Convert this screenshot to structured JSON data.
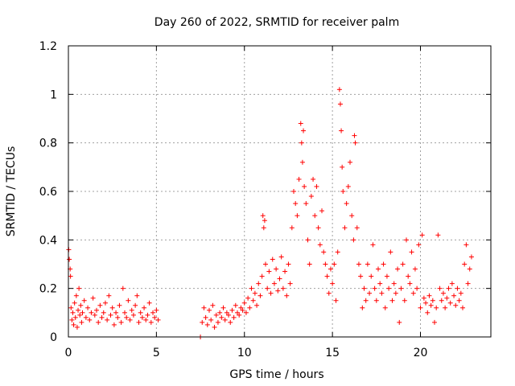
{
  "chart_data": {
    "type": "scatter",
    "title": "Day 260 of 2022, SRMTID for receiver palm",
    "xlabel": "GPS time / hours",
    "ylabel": "SRMTID / TECUs",
    "xlim": [
      0,
      24
    ],
    "ylim": [
      0,
      1.2
    ],
    "xticks": [
      0,
      5,
      10,
      15,
      20
    ],
    "xtick_labels": [
      "0",
      "5",
      "10",
      "15",
      "20"
    ],
    "yticks": [
      0,
      0.2,
      0.4,
      0.6,
      0.8,
      1,
      1.2
    ],
    "ytick_labels": [
      "0",
      "0.2",
      "0.4",
      "0.6",
      "0.8",
      "1",
      "1.2"
    ],
    "grid": true,
    "marker": "+",
    "color": "#ff0000",
    "series": [
      {
        "name": "SRMTID",
        "points": [
          [
            0.02,
            0.36
          ],
          [
            0.05,
            0.32
          ],
          [
            0.1,
            0.28
          ],
          [
            0.12,
            0.25
          ],
          [
            0.15,
            0.12
          ],
          [
            0.2,
            0.07
          ],
          [
            0.25,
            0.1
          ],
          [
            0.3,
            0.05
          ],
          [
            0.35,
            0.14
          ],
          [
            0.4,
            0.08
          ],
          [
            0.45,
            0.17
          ],
          [
            0.5,
            0.04
          ],
          [
            0.55,
            0.11
          ],
          [
            0.6,
            0.2
          ],
          [
            0.65,
            0.09
          ],
          [
            0.7,
            0.13
          ],
          [
            0.75,
            0.06
          ],
          [
            0.8,
            0.1
          ],
          [
            0.9,
            0.15
          ],
          [
            1.0,
            0.08
          ],
          [
            1.1,
            0.12
          ],
          [
            1.2,
            0.07
          ],
          [
            1.3,
            0.1
          ],
          [
            1.4,
            0.16
          ],
          [
            1.5,
            0.09
          ],
          [
            1.6,
            0.11
          ],
          [
            1.7,
            0.06
          ],
          [
            1.8,
            0.13
          ],
          [
            1.9,
            0.08
          ],
          [
            2.0,
            0.1
          ],
          [
            2.1,
            0.14
          ],
          [
            2.2,
            0.07
          ],
          [
            2.3,
            0.17
          ],
          [
            2.4,
            0.09
          ],
          [
            2.5,
            0.12
          ],
          [
            2.6,
            0.05
          ],
          [
            2.7,
            0.1
          ],
          [
            2.8,
            0.08
          ],
          [
            2.9,
            0.13
          ],
          [
            3.0,
            0.06
          ],
          [
            3.1,
            0.2
          ],
          [
            3.2,
            0.1
          ],
          [
            3.3,
            0.08
          ],
          [
            3.4,
            0.15
          ],
          [
            3.5,
            0.07
          ],
          [
            3.6,
            0.11
          ],
          [
            3.7,
            0.09
          ],
          [
            3.8,
            0.13
          ],
          [
            3.9,
            0.17
          ],
          [
            4.0,
            0.06
          ],
          [
            4.1,
            0.1
          ],
          [
            4.2,
            0.08
          ],
          [
            4.3,
            0.12
          ],
          [
            4.4,
            0.07
          ],
          [
            4.5,
            0.09
          ],
          [
            4.6,
            0.14
          ],
          [
            4.7,
            0.06
          ],
          [
            4.8,
            0.1
          ],
          [
            4.9,
            0.08
          ],
          [
            5.0,
            0.11
          ],
          [
            5.1,
            0.07
          ],
          [
            7.5,
            0.0
          ],
          [
            7.6,
            0.06
          ],
          [
            7.7,
            0.12
          ],
          [
            7.8,
            0.08
          ],
          [
            7.9,
            0.05
          ],
          [
            8.0,
            0.11
          ],
          [
            8.1,
            0.07
          ],
          [
            8.2,
            0.13
          ],
          [
            8.3,
            0.04
          ],
          [
            8.4,
            0.09
          ],
          [
            8.5,
            0.06
          ],
          [
            8.6,
            0.1
          ],
          [
            8.7,
            0.08
          ],
          [
            8.8,
            0.12
          ],
          [
            8.9,
            0.07
          ],
          [
            9.0,
            0.1
          ],
          [
            9.1,
            0.09
          ],
          [
            9.2,
            0.06
          ],
          [
            9.3,
            0.11
          ],
          [
            9.4,
            0.08
          ],
          [
            9.5,
            0.13
          ],
          [
            9.6,
            0.1
          ],
          [
            9.7,
            0.09
          ],
          [
            9.8,
            0.12
          ],
          [
            9.9,
            0.11
          ],
          [
            10.0,
            0.14
          ],
          [
            10.1,
            0.1
          ],
          [
            10.2,
            0.16
          ],
          [
            10.3,
            0.12
          ],
          [
            10.4,
            0.2
          ],
          [
            10.5,
            0.15
          ],
          [
            10.6,
            0.18
          ],
          [
            10.7,
            0.13
          ],
          [
            10.8,
            0.22
          ],
          [
            10.9,
            0.17
          ],
          [
            11.0,
            0.25
          ],
          [
            11.05,
            0.5
          ],
          [
            11.1,
            0.45
          ],
          [
            11.15,
            0.48
          ],
          [
            11.2,
            0.3
          ],
          [
            11.3,
            0.2
          ],
          [
            11.4,
            0.27
          ],
          [
            11.5,
            0.18
          ],
          [
            11.6,
            0.32
          ],
          [
            11.7,
            0.22
          ],
          [
            11.8,
            0.28
          ],
          [
            11.9,
            0.19
          ],
          [
            12.0,
            0.24
          ],
          [
            12.1,
            0.33
          ],
          [
            12.2,
            0.2
          ],
          [
            12.3,
            0.27
          ],
          [
            12.4,
            0.17
          ],
          [
            12.5,
            0.3
          ],
          [
            12.6,
            0.22
          ],
          [
            12.7,
            0.45
          ],
          [
            12.8,
            0.6
          ],
          [
            12.9,
            0.55
          ],
          [
            13.0,
            0.5
          ],
          [
            13.1,
            0.65
          ],
          [
            13.2,
            0.88
          ],
          [
            13.25,
            0.8
          ],
          [
            13.3,
            0.72
          ],
          [
            13.35,
            0.85
          ],
          [
            13.4,
            0.62
          ],
          [
            13.5,
            0.55
          ],
          [
            13.6,
            0.4
          ],
          [
            13.7,
            0.3
          ],
          [
            13.8,
            0.58
          ],
          [
            13.9,
            0.65
          ],
          [
            14.0,
            0.5
          ],
          [
            14.1,
            0.62
          ],
          [
            14.2,
            0.45
          ],
          [
            14.3,
            0.38
          ],
          [
            14.4,
            0.52
          ],
          [
            14.5,
            0.35
          ],
          [
            14.6,
            0.3
          ],
          [
            14.7,
            0.25
          ],
          [
            14.8,
            0.18
          ],
          [
            14.9,
            0.28
          ],
          [
            15.0,
            0.22
          ],
          [
            15.1,
            0.3
          ],
          [
            15.2,
            0.15
          ],
          [
            15.3,
            0.35
          ],
          [
            15.4,
            1.02
          ],
          [
            15.45,
            0.96
          ],
          [
            15.5,
            0.85
          ],
          [
            15.55,
            0.7
          ],
          [
            15.6,
            0.6
          ],
          [
            15.7,
            0.45
          ],
          [
            15.8,
            0.55
          ],
          [
            15.9,
            0.62
          ],
          [
            16.0,
            0.72
          ],
          [
            16.1,
            0.5
          ],
          [
            16.2,
            0.4
          ],
          [
            16.25,
            0.83
          ],
          [
            16.3,
            0.8
          ],
          [
            16.4,
            0.45
          ],
          [
            16.5,
            0.3
          ],
          [
            16.6,
            0.25
          ],
          [
            16.7,
            0.12
          ],
          [
            16.8,
            0.2
          ],
          [
            16.9,
            0.15
          ],
          [
            17.0,
            0.3
          ],
          [
            17.1,
            0.18
          ],
          [
            17.2,
            0.25
          ],
          [
            17.3,
            0.38
          ],
          [
            17.4,
            0.2
          ],
          [
            17.5,
            0.15
          ],
          [
            17.6,
            0.28
          ],
          [
            17.7,
            0.22
          ],
          [
            17.8,
            0.18
          ],
          [
            17.9,
            0.3
          ],
          [
            18.0,
            0.12
          ],
          [
            18.1,
            0.25
          ],
          [
            18.2,
            0.2
          ],
          [
            18.3,
            0.35
          ],
          [
            18.4,
            0.15
          ],
          [
            18.5,
            0.22
          ],
          [
            18.6,
            0.18
          ],
          [
            18.7,
            0.28
          ],
          [
            18.8,
            0.06
          ],
          [
            18.9,
            0.2
          ],
          [
            19.0,
            0.3
          ],
          [
            19.1,
            0.15
          ],
          [
            19.2,
            0.4
          ],
          [
            19.3,
            0.25
          ],
          [
            19.4,
            0.22
          ],
          [
            19.5,
            0.35
          ],
          [
            19.6,
            0.18
          ],
          [
            19.7,
            0.28
          ],
          [
            19.8,
            0.2
          ],
          [
            19.9,
            0.38
          ],
          [
            20.0,
            0.12
          ],
          [
            20.1,
            0.42
          ],
          [
            20.2,
            0.16
          ],
          [
            20.3,
            0.14
          ],
          [
            20.4,
            0.1
          ],
          [
            20.5,
            0.17
          ],
          [
            20.6,
            0.13
          ],
          [
            20.7,
            0.15
          ],
          [
            20.8,
            0.06
          ],
          [
            20.9,
            0.12
          ],
          [
            21.0,
            0.42
          ],
          [
            21.1,
            0.2
          ],
          [
            21.2,
            0.15
          ],
          [
            21.3,
            0.18
          ],
          [
            21.4,
            0.12
          ],
          [
            21.5,
            0.16
          ],
          [
            21.6,
            0.2
          ],
          [
            21.7,
            0.14
          ],
          [
            21.8,
            0.22
          ],
          [
            21.9,
            0.17
          ],
          [
            22.0,
            0.13
          ],
          [
            22.1,
            0.2
          ],
          [
            22.2,
            0.15
          ],
          [
            22.3,
            0.18
          ],
          [
            22.4,
            0.12
          ],
          [
            22.5,
            0.3
          ],
          [
            22.6,
            0.38
          ],
          [
            22.7,
            0.22
          ],
          [
            22.8,
            0.28
          ],
          [
            22.9,
            0.33
          ]
        ]
      }
    ]
  }
}
